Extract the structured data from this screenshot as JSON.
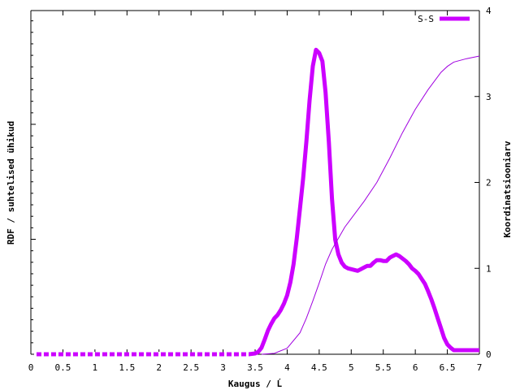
{
  "chart_data": {
    "type": "line",
    "title": "",
    "xlabel": "Kaugus / Ĺ",
    "ylabel": "RDF / suhtelised ühikud",
    "y2label": "Koordinatsiooniarv",
    "xlim": [
      0,
      7
    ],
    "y2lim": [
      0,
      4
    ],
    "xticks": [
      "0",
      "0.5",
      "1",
      "1.5",
      "2",
      "2.5",
      "3",
      "3.5",
      "4",
      "4.5",
      "5",
      "5.5",
      "6",
      "6.5",
      "7"
    ],
    "y2ticks": [
      "0",
      "1",
      "2",
      "3",
      "4"
    ],
    "grid": false,
    "legend_position": "top-right",
    "series": [
      {
        "name": "S-S",
        "axis": "left",
        "color": "#cc00ff",
        "x": [
          0.05,
          0.5,
          1,
          1.5,
          2,
          2.5,
          3,
          3.4,
          3.5,
          3.55,
          3.6,
          3.65,
          3.7,
          3.75,
          3.8,
          3.85,
          3.9,
          3.95,
          4.0,
          4.05,
          4.1,
          4.15,
          4.2,
          4.25,
          4.3,
          4.35,
          4.4,
          4.45,
          4.5,
          4.55,
          4.6,
          4.65,
          4.7,
          4.75,
          4.8,
          4.85,
          4.9,
          4.95,
          5.0,
          5.05,
          5.1,
          5.15,
          5.2,
          5.25,
          5.3,
          5.35,
          5.4,
          5.45,
          5.5,
          5.55,
          5.6,
          5.65,
          5.7,
          5.75,
          5.8,
          5.85,
          5.9,
          5.95,
          6.0,
          6.05,
          6.1,
          6.15,
          6.2,
          6.25,
          6.3,
          6.35,
          6.4,
          6.45,
          6.5,
          6.55,
          6.6,
          6.65,
          6.7,
          6.75,
          6.8,
          6.85,
          6.9,
          6.95,
          7.0
        ],
        "values": [
          0,
          0,
          0,
          0,
          0,
          0,
          0,
          0,
          0.01,
          0.03,
          0.08,
          0.18,
          0.29,
          0.37,
          0.44,
          0.48,
          0.54,
          0.62,
          0.72,
          0.88,
          1.1,
          1.42,
          1.78,
          2.15,
          2.6,
          3.1,
          3.52,
          3.72,
          3.68,
          3.58,
          3.2,
          2.6,
          1.9,
          1.4,
          1.22,
          1.12,
          1.07,
          1.05,
          1.04,
          1.03,
          1.02,
          1.04,
          1.06,
          1.08,
          1.08,
          1.12,
          1.15,
          1.15,
          1.14,
          1.14,
          1.18,
          1.2,
          1.22,
          1.2,
          1.17,
          1.14,
          1.1,
          1.05,
          1.02,
          0.98,
          0.92,
          0.86,
          0.77,
          0.67,
          0.56,
          0.44,
          0.32,
          0.2,
          0.12,
          0.08,
          0.05,
          0.05,
          0.05,
          0.05,
          0.05,
          0.05,
          0.05,
          0.05,
          0.05
        ]
      },
      {
        "name": "",
        "axis": "right",
        "color": "#a000e0",
        "x": [
          3.6,
          3.8,
          4.0,
          4.2,
          4.3,
          4.4,
          4.5,
          4.6,
          4.7,
          4.8,
          4.9,
          5.0,
          5.2,
          5.4,
          5.6,
          5.8,
          6.0,
          6.2,
          6.4,
          6.5,
          6.6,
          6.8,
          7.0
        ],
        "values": [
          0,
          0.01,
          0.07,
          0.25,
          0.42,
          0.62,
          0.83,
          1.05,
          1.22,
          1.35,
          1.48,
          1.58,
          1.78,
          2.0,
          2.28,
          2.58,
          2.85,
          3.08,
          3.28,
          3.35,
          3.4,
          3.44,
          3.47
        ]
      }
    ]
  }
}
